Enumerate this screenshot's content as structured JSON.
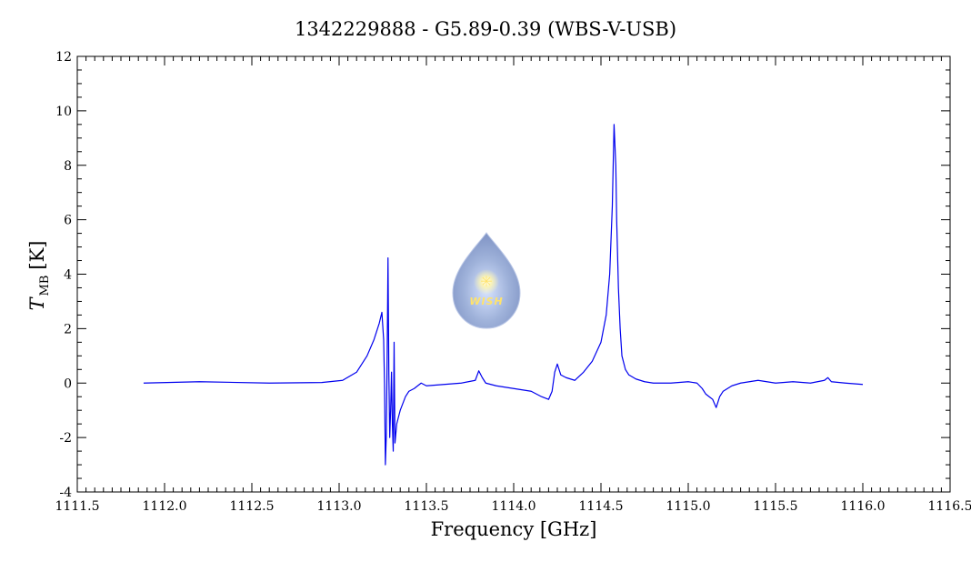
{
  "chart_data": {
    "type": "line",
    "title": "1342229888 - G5.89-0.39 (WBS-V-USB)",
    "xlabel": "Frequency [GHz]",
    "ylabel": "T_MB [K]",
    "ylabel_main": "T",
    "ylabel_sub": "MB",
    "ylabel_unit": "[K]",
    "xlim": [
      1111.5,
      1116.5
    ],
    "ylim": [
      -4,
      12
    ],
    "xticks": [
      1111.5,
      1112.0,
      1112.5,
      1113.0,
      1113.5,
      1114.0,
      1114.5,
      1115.0,
      1115.5,
      1116.0,
      1116.5
    ],
    "xtick_labels": [
      "1111.5",
      "1112.0",
      "1112.5",
      "1113.0",
      "1113.5",
      "1114.0",
      "1114.5",
      "1115.0",
      "1115.5",
      "1116.0",
      "1116.5"
    ],
    "yticks": [
      -4,
      -2,
      0,
      2,
      4,
      6,
      8,
      10,
      12
    ],
    "ytick_labels": [
      "-4",
      "-2",
      "0",
      "2",
      "4",
      "6",
      "8",
      "10",
      "12"
    ],
    "grid": false,
    "series": [
      {
        "color": "#0000ee",
        "x": [
          1111.88,
          1112.2,
          1112.6,
          1112.9,
          1113.02,
          1113.1,
          1113.16,
          1113.2,
          1113.23,
          1113.245,
          1113.255,
          1113.26,
          1113.265,
          1113.27,
          1113.275,
          1113.28,
          1113.285,
          1113.29,
          1113.295,
          1113.3,
          1113.305,
          1113.31,
          1113.315,
          1113.32,
          1113.33,
          1113.35,
          1113.38,
          1113.4,
          1113.43,
          1113.47,
          1113.5,
          1113.6,
          1113.7,
          1113.78,
          1113.8,
          1113.82,
          1113.84,
          1113.87,
          1113.9,
          1114.0,
          1114.1,
          1114.16,
          1114.2,
          1114.22,
          1114.235,
          1114.25,
          1114.27,
          1114.3,
          1114.35,
          1114.4,
          1114.45,
          1114.5,
          1114.53,
          1114.55,
          1114.565,
          1114.575,
          1114.585,
          1114.59,
          1114.6,
          1114.61,
          1114.62,
          1114.64,
          1114.66,
          1114.7,
          1114.75,
          1114.8,
          1114.9,
          1115.0,
          1115.05,
          1115.08,
          1115.1,
          1115.12,
          1115.14,
          1115.16,
          1115.18,
          1115.2,
          1115.25,
          1115.3,
          1115.35,
          1115.4,
          1115.5,
          1115.6,
          1115.7,
          1115.78,
          1115.8,
          1115.82,
          1115.9,
          1116.0
        ],
        "y": [
          0.0,
          0.05,
          0.0,
          0.02,
          0.1,
          0.4,
          1.0,
          1.6,
          2.2,
          2.6,
          1.6,
          0.0,
          -3.0,
          -2.0,
          0.8,
          4.6,
          0.3,
          -2.0,
          -1.0,
          0.4,
          -1.5,
          -2.5,
          1.5,
          -2.2,
          -1.5,
          -1.0,
          -0.5,
          -0.3,
          -0.2,
          0.0,
          -0.1,
          -0.05,
          0.0,
          0.1,
          0.45,
          0.2,
          0.0,
          -0.05,
          -0.1,
          -0.2,
          -0.3,
          -0.5,
          -0.6,
          -0.3,
          0.4,
          0.7,
          0.3,
          0.2,
          0.1,
          0.4,
          0.8,
          1.5,
          2.5,
          4.0,
          6.5,
          9.5,
          8.0,
          6.0,
          3.5,
          2.0,
          1.0,
          0.5,
          0.3,
          0.15,
          0.05,
          0.0,
          0.0,
          0.05,
          0.0,
          -0.2,
          -0.4,
          -0.5,
          -0.6,
          -0.9,
          -0.5,
          -0.3,
          -0.1,
          0.0,
          0.05,
          0.1,
          0.0,
          0.05,
          0.0,
          0.1,
          0.2,
          0.05,
          0.0,
          -0.05
        ]
      }
    ]
  },
  "logo": {
    "text": "WISH"
  },
  "colors": {
    "line": "#0000ee",
    "axis": "#000000",
    "logo_fill": "#9fb2da",
    "logo_star": "#ffe36b"
  }
}
